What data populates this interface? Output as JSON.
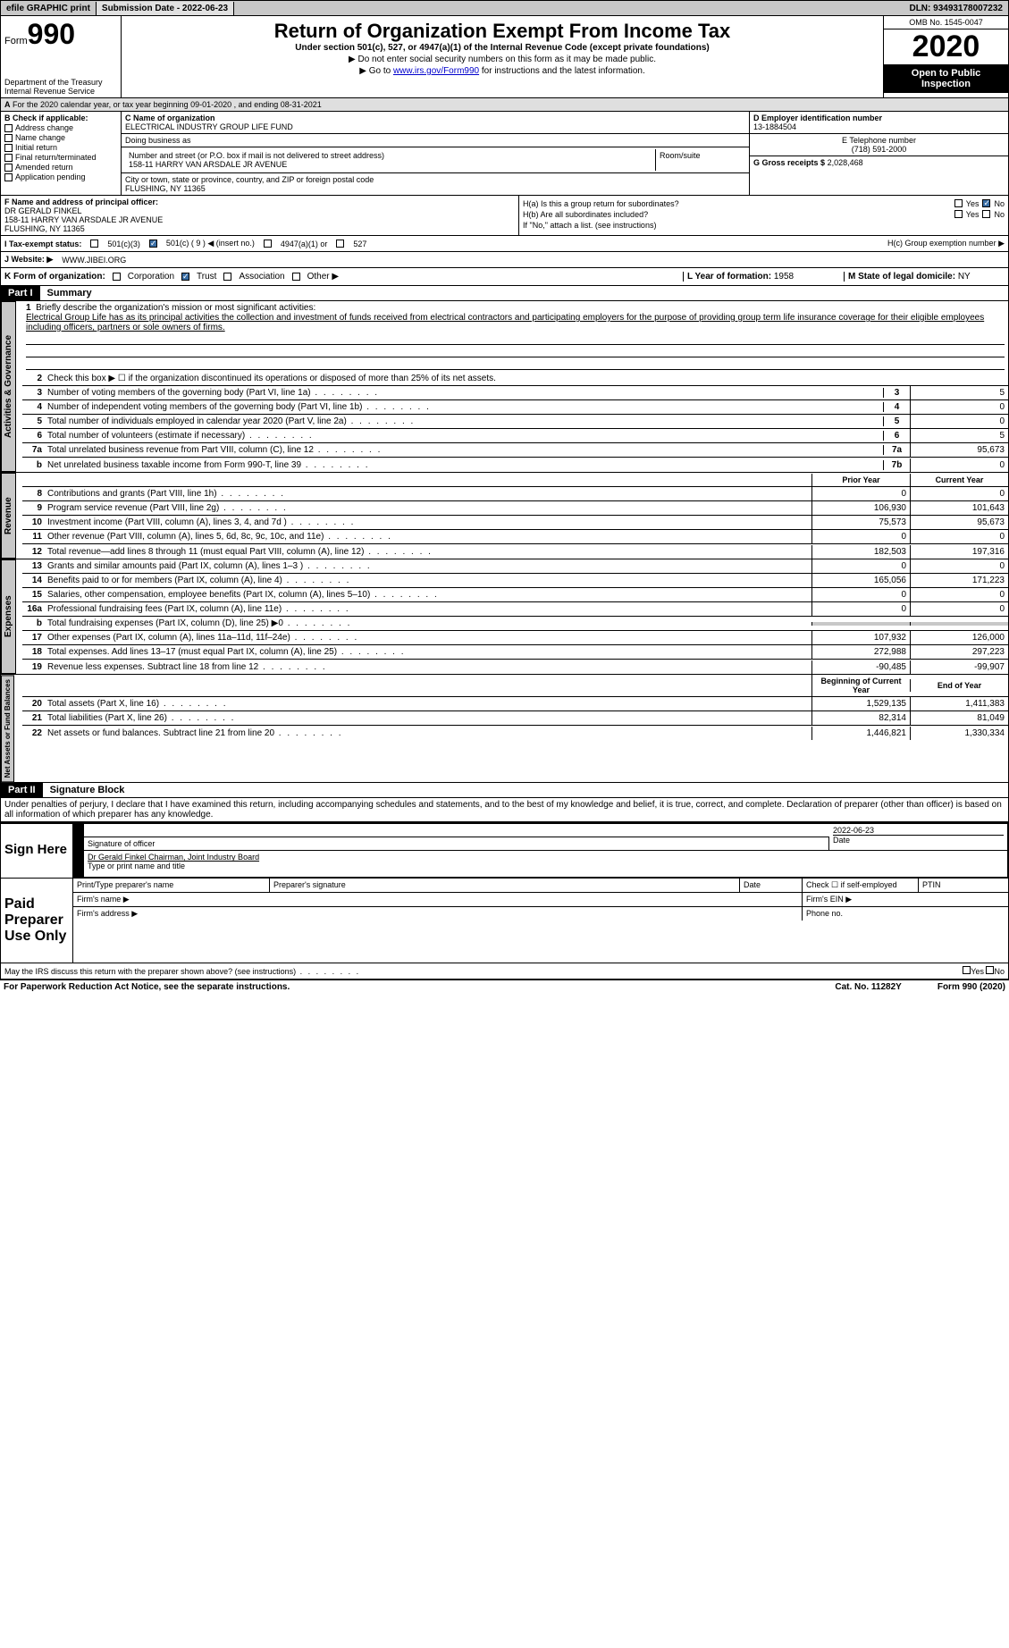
{
  "topbar": {
    "efile": "efile GRAPHIC print",
    "submission_label": "Submission Date - 2022-06-23",
    "dln_label": "DLN: 93493178007232"
  },
  "header": {
    "form_label": "Form",
    "form_number": "990",
    "dept": "Department of the Treasury\nInternal Revenue Service",
    "title": "Return of Organization Exempt From Income Tax",
    "subtitle": "Under section 501(c), 527, or 4947(a)(1) of the Internal Revenue Code (except private foundations)",
    "ssn_line": "Do not enter social security numbers on this form as it may be made public.",
    "goto_pre": "Go to ",
    "goto_link": "www.irs.gov/Form990",
    "goto_post": " for instructions and the latest information.",
    "omb": "OMB No. 1545-0047",
    "year": "2020",
    "inspect": "Open to Public Inspection"
  },
  "section_a": "For the 2020 calendar year, or tax year beginning 09-01-2020    , and ending 08-31-2021",
  "section_b": {
    "label": "B Check if applicable:",
    "opts": [
      "Address change",
      "Name change",
      "Initial return",
      "Final return/terminated",
      "Amended return",
      "Application pending"
    ]
  },
  "section_c": {
    "name_label": "C Name of organization",
    "org_name": "ELECTRICAL INDUSTRY GROUP LIFE FUND",
    "dba": "Doing business as",
    "street_label": "Number and street (or P.O. box if mail is not delivered to street address)",
    "street": "158-11 HARRY VAN ARSDALE JR AVENUE",
    "room_label": "Room/suite",
    "city_label": "City or town, state or province, country, and ZIP or foreign postal code",
    "city": "FLUSHING, NY  11365"
  },
  "section_d": {
    "label": "D Employer identification number",
    "ein": "13-1884504"
  },
  "section_e": {
    "label": "E Telephone number",
    "phone": "(718) 591-2000"
  },
  "section_g": {
    "label": "G Gross receipts $",
    "amount": "2,028,468"
  },
  "section_f": {
    "label": "F  Name and address of principal officer:",
    "name": "DR GERALD FINKEL",
    "addr1": "158-11 HARRY VAN ARSDALE JR AVENUE",
    "addr2": "FLUSHING, NY  11365"
  },
  "section_h": {
    "ha": "H(a)  Is this a group return for subordinates?",
    "hb": "H(b)  Are all subordinates included?",
    "hb_note": "If \"No,\" attach a list. (see instructions)",
    "hc": "H(c)  Group exemption number ▶",
    "yes": "Yes",
    "no": "No"
  },
  "section_i": {
    "label": "I    Tax-exempt status:",
    "c3": "501(c)(3)",
    "c": "501(c) ( 9 ) ◀ (insert no.)",
    "a1": "4947(a)(1) or",
    "527": "527"
  },
  "section_j": {
    "label": "J   Website: ▶",
    "url": "WWW.JIBEI.ORG"
  },
  "section_k": {
    "label": "K Form of organization:",
    "corp": "Corporation",
    "trust": "Trust",
    "assoc": "Association",
    "other": "Other ▶"
  },
  "section_l": {
    "label": "L Year of formation:",
    "val": "1958"
  },
  "section_m": {
    "label": "M State of legal domicile:",
    "val": "NY"
  },
  "part1": {
    "header": "Part I",
    "title": "Summary",
    "mission_label": "Briefly describe the organization's mission or most significant activities:",
    "mission": "Electrical Group Life has as its principal activities the collection and investment of funds received from electrical contractors and participating employers for the purpose of providing group term life insurance coverage for their eligible employees including officers, partners or sole owners of firms.",
    "line2": "Check this box ▶ ☐  if the organization discontinued its operations or disposed of more than 25% of its net assets.",
    "lines_gov": [
      {
        "n": "3",
        "d": "Number of voting members of the governing body (Part VI, line 1a)",
        "c": "3",
        "v": "5"
      },
      {
        "n": "4",
        "d": "Number of independent voting members of the governing body (Part VI, line 1b)",
        "c": "4",
        "v": "0"
      },
      {
        "n": "5",
        "d": "Total number of individuals employed in calendar year 2020 (Part V, line 2a)",
        "c": "5",
        "v": "0"
      },
      {
        "n": "6",
        "d": "Total number of volunteers (estimate if necessary)",
        "c": "6",
        "v": "5"
      },
      {
        "n": "7a",
        "d": "Total unrelated business revenue from Part VIII, column (C), line 12",
        "c": "7a",
        "v": "95,673"
      },
      {
        "n": "b",
        "d": "Net unrelated business taxable income from Form 990-T, line 39",
        "c": "7b",
        "v": "0"
      }
    ],
    "prior_header": "Prior Year",
    "current_header": "Current Year",
    "rev_lines": [
      {
        "n": "8",
        "d": "Contributions and grants (Part VIII, line 1h)",
        "p": "0",
        "c": "0"
      },
      {
        "n": "9",
        "d": "Program service revenue (Part VIII, line 2g)",
        "p": "106,930",
        "c": "101,643"
      },
      {
        "n": "10",
        "d": "Investment income (Part VIII, column (A), lines 3, 4, and 7d )",
        "p": "75,573",
        "c": "95,673"
      },
      {
        "n": "11",
        "d": "Other revenue (Part VIII, column (A), lines 5, 6d, 8c, 9c, 10c, and 11e)",
        "p": "0",
        "c": "0"
      },
      {
        "n": "12",
        "d": "Total revenue—add lines 8 through 11 (must equal Part VIII, column (A), line 12)",
        "p": "182,503",
        "c": "197,316"
      }
    ],
    "exp_lines": [
      {
        "n": "13",
        "d": "Grants and similar amounts paid (Part IX, column (A), lines 1–3 )",
        "p": "0",
        "c": "0"
      },
      {
        "n": "14",
        "d": "Benefits paid to or for members (Part IX, column (A), line 4)",
        "p": "165,056",
        "c": "171,223"
      },
      {
        "n": "15",
        "d": "Salaries, other compensation, employee benefits (Part IX, column (A), lines 5–10)",
        "p": "0",
        "c": "0"
      },
      {
        "n": "16a",
        "d": "Professional fundraising fees (Part IX, column (A), line 11e)",
        "p": "0",
        "c": "0"
      },
      {
        "n": "b",
        "d": "Total fundraising expenses (Part IX, column (D), line 25) ▶0",
        "p": "",
        "c": ""
      },
      {
        "n": "17",
        "d": "Other expenses (Part IX, column (A), lines 11a–11d, 11f–24e)",
        "p": "107,932",
        "c": "126,000"
      },
      {
        "n": "18",
        "d": "Total expenses. Add lines 13–17 (must equal Part IX, column (A), line 25)",
        "p": "272,988",
        "c": "297,223"
      },
      {
        "n": "19",
        "d": "Revenue less expenses. Subtract line 18 from line 12",
        "p": "-90,485",
        "c": "-99,907"
      }
    ],
    "na_begin": "Beginning of Current Year",
    "na_end": "End of Year",
    "na_lines": [
      {
        "n": "20",
        "d": "Total assets (Part X, line 16)",
        "p": "1,529,135",
        "c": "1,411,383"
      },
      {
        "n": "21",
        "d": "Total liabilities (Part X, line 26)",
        "p": "82,314",
        "c": "81,049"
      },
      {
        "n": "22",
        "d": "Net assets or fund balances. Subtract line 21 from line 20",
        "p": "1,446,821",
        "c": "1,330,334"
      }
    ],
    "vtabs": {
      "gov": "Activities & Governance",
      "rev": "Revenue",
      "exp": "Expenses",
      "na": "Net Assets or Fund Balances"
    }
  },
  "part2": {
    "header": "Part II",
    "title": "Signature Block",
    "penalties": "Under penalties of perjury, I declare that I have examined this return, including accompanying schedules and statements, and to the best of my knowledge and belief, it is true, correct, and complete. Declaration of preparer (other than officer) is based on all information of which preparer has any knowledge.",
    "sign_here": "Sign Here",
    "sig_officer": "Signature of officer",
    "sig_date": "2022-06-23",
    "date_label": "Date",
    "officer_name": "Dr Gerald Finkel  Chairman, Joint Industry Board",
    "type_name": "Type or print name and title",
    "paid_label": "Paid Preparer Use Only",
    "prep_name": "Print/Type preparer's name",
    "prep_sig": "Preparer's signature",
    "check_self": "Check ☐ if self-employed",
    "ptin": "PTIN",
    "firm_name": "Firm's name    ▶",
    "firm_ein": "Firm's EIN ▶",
    "firm_addr": "Firm's address ▶",
    "phone": "Phone no.",
    "discuss": "May the IRS discuss this return with the preparer shown above? (see instructions)"
  },
  "footer": {
    "pra": "For Paperwork Reduction Act Notice, see the separate instructions.",
    "cat": "Cat. No. 11282Y",
    "form": "Form 990 (2020)"
  }
}
